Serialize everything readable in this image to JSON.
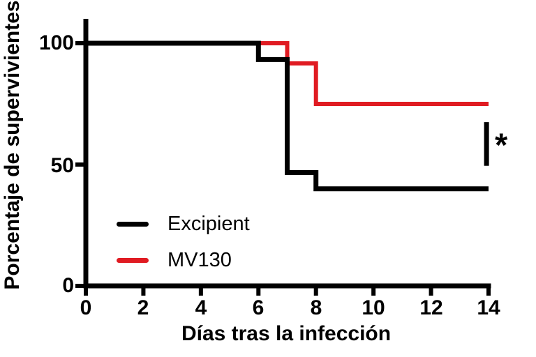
{
  "chart_data": {
    "type": "line",
    "subtype": "kaplan-meier-survival-step",
    "title": "",
    "xlabel": "Días tras la infección",
    "ylabel": "Porcentaje de supervivientes",
    "xlim": [
      0,
      14
    ],
    "ylim": [
      0,
      100
    ],
    "xticks": [
      0,
      2,
      4,
      6,
      8,
      10,
      12,
      14
    ],
    "yticks": [
      0,
      50,
      100
    ],
    "grid": false,
    "background": "#ffffff",
    "axis_color": "#000000",
    "series": [
      {
        "name": "Excipient",
        "color": "#000000",
        "x": [
          0,
          6,
          6,
          7,
          7,
          8,
          8,
          14
        ],
        "y": [
          100,
          100,
          93.3,
          93.3,
          46.7,
          46.7,
          40,
          40
        ]
      },
      {
        "name": "MV130",
        "color": "#e01b22",
        "x": [
          0,
          7,
          7,
          8,
          8,
          14
        ],
        "y": [
          100,
          100,
          91.7,
          91.7,
          75,
          75
        ]
      }
    ],
    "legend": {
      "position": "inside-bottom-left",
      "entries": [
        "Excipient",
        "MV130"
      ]
    },
    "annotations": [
      {
        "type": "significance-bracket",
        "symbol": "*",
        "x_day": 13.93,
        "y_pct_range": [
          49.5,
          67.5
        ]
      }
    ]
  }
}
